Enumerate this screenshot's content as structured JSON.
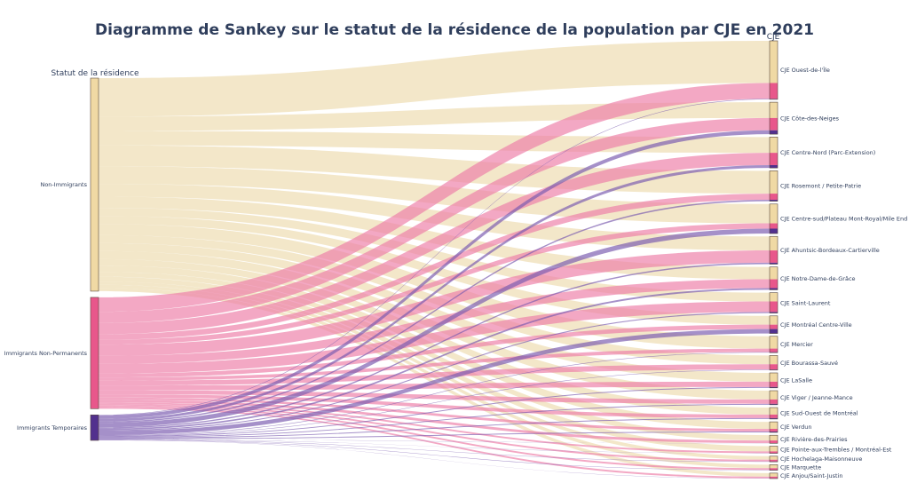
{
  "chart_data": {
    "type": "sankey",
    "title": "Diagramme de Sankey sur le statut de la résidence de la population par CJE en 2021",
    "source_column_label": "Statut de la résidence",
    "target_column_label": "CJE",
    "sources": [
      {
        "name": "Non-Immigrants",
        "color": "#f0d9a4",
        "link_color": "#eedcb0"
      },
      {
        "name": "Immigrants Non-Permanents",
        "color": "#e8578b",
        "link_color": "#ee7fa8"
      },
      {
        "name": "Immigrants Temporaires",
        "color": "#52308e",
        "link_color": "#7a5cb0"
      }
    ],
    "targets": [
      {
        "name": "CJE Ouest-de-l'Île",
        "values": [
          24,
          9,
          0.3
        ]
      },
      {
        "name": "CJE Côte-des-Neiges",
        "values": [
          9,
          7,
          2.2
        ]
      },
      {
        "name": "CJE Centre-Nord (Parc-Extension)",
        "values": [
          9,
          7,
          1.6
        ]
      },
      {
        "name": "CJE Rosemont / Petite-Patrie",
        "values": [
          13,
          3.5,
          0.8
        ]
      },
      {
        "name": "CJE Centre-sud/Plateau Mont-Royal/Mile End",
        "values": [
          11,
          3,
          2.8
        ]
      },
      {
        "name": "CJE Ahuntsic-Bordeaux-Cartierville",
        "values": [
          8,
          7,
          0.8
        ]
      },
      {
        "name": "CJE Notre-Dame-de-Grâce",
        "values": [
          7,
          5,
          1.0
        ]
      },
      {
        "name": "CJE Saint-Laurent",
        "values": [
          5,
          6,
          0.6
        ]
      },
      {
        "name": "CJE Montréal Centre-Ville",
        "values": [
          5,
          2.5,
          2.5
        ]
      },
      {
        "name": "CJE Mercier",
        "values": [
          7,
          2,
          0.3
        ]
      },
      {
        "name": "CJE Bourassa-Sauvé",
        "values": [
          5,
          3,
          0.3
        ]
      },
      {
        "name": "CJE LaSalle",
        "values": [
          5,
          3,
          0.5
        ]
      },
      {
        "name": "CJE Viger / Jeanne-Mance",
        "values": [
          5,
          2.5,
          0.5
        ]
      },
      {
        "name": "CJE Sud-Ouest de Montréal",
        "values": [
          4,
          2,
          0.5
        ]
      },
      {
        "name": "CJE Verdun",
        "values": [
          4,
          1.5,
          0.5
        ]
      },
      {
        "name": "CJE Rivière-des-Prairies",
        "values": [
          3,
          1.5,
          0.1
        ]
      },
      {
        "name": "CJE Pointe-aux-Trembles / Montréal-Est",
        "values": [
          3,
          1,
          0.1
        ]
      },
      {
        "name": "CJE Hochelaga-Maisonneuve",
        "values": [
          2,
          1,
          0.2
        ]
      },
      {
        "name": "CJE Marquette",
        "values": [
          2,
          1,
          0.2
        ]
      },
      {
        "name": "CJE Anjou/Saint-Justin",
        "values": [
          2,
          1,
          0.1
        ]
      }
    ]
  }
}
